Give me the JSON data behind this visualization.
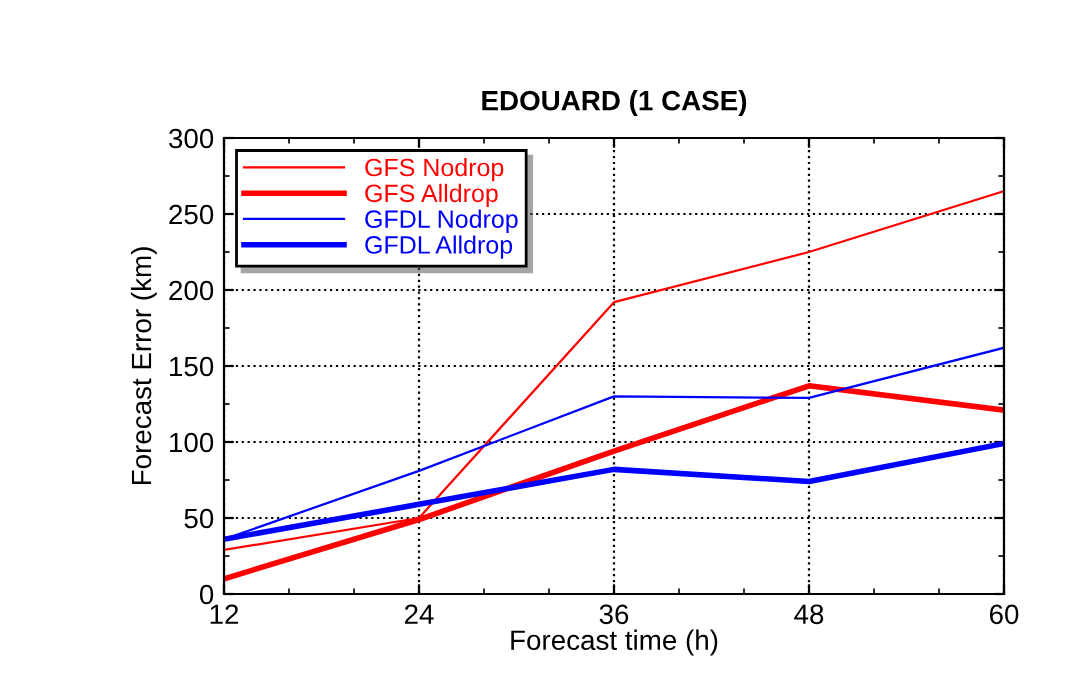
{
  "chart_data": {
    "type": "line",
    "title": "EDOUARD (1 CASE)",
    "xlabel": "Forecast time (h)",
    "ylabel": "Forecast Error (km)",
    "x": [
      12,
      24,
      36,
      48,
      60
    ],
    "series": [
      {
        "name": "GFS Nodrop",
        "color": "#ff0000",
        "values": [
          29,
          50,
          192,
          225,
          265
        ]
      },
      {
        "name": "GFS Alldrop",
        "color": "#ff0000",
        "values": [
          10,
          49,
          94,
          137,
          121
        ]
      },
      {
        "name": "GFDL Nodrop",
        "color": "#0000ff",
        "values": [
          36,
          81,
          130,
          129,
          162
        ]
      },
      {
        "name": "GFDL Alldrop",
        "color": "#0000ff",
        "values": [
          36,
          59,
          82,
          74,
          99
        ]
      }
    ],
    "xlim": [
      12,
      60
    ],
    "xticks": [
      12,
      24,
      36,
      48,
      60
    ],
    "ylim": [
      0,
      300
    ],
    "yticks": [
      0,
      50,
      100,
      150,
      200,
      250,
      300
    ],
    "grid": true,
    "legend": "top left",
    "marker": "none",
    "line_style": "solid"
  }
}
